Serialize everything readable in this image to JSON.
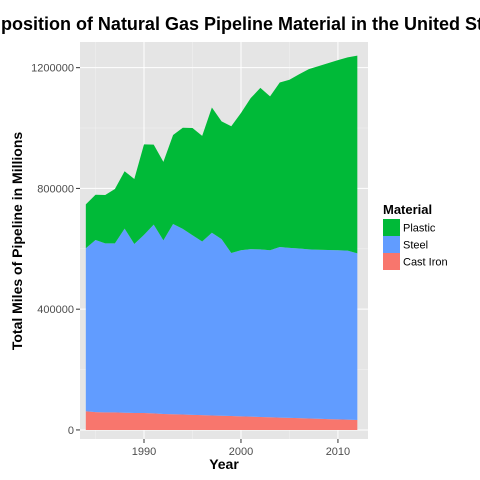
{
  "chart_data": {
    "type": "area",
    "stacked": true,
    "title": "Composition of Natural Gas Pipeline Material in the United States",
    "xlabel": "Year",
    "ylabel": "Total Miles of Pipeline in Millions",
    "xlim": [
      1983.4,
      2013.1
    ],
    "ylim": [
      -30000,
      1285000
    ],
    "x_ticks": [
      1990,
      2000,
      2010
    ],
    "y_ticks": [
      0,
      400000,
      800000,
      1200000
    ],
    "y_tick_labels": [
      "0",
      "400000",
      "800000",
      "1200000"
    ],
    "x_tick_labels": [
      "1990",
      "2000",
      "2010"
    ],
    "legend_title": "Material",
    "legend_position": "right",
    "x": [
      1984,
      1985,
      1986,
      1987,
      1988,
      1989,
      1990,
      1991,
      1992,
      1993,
      1994,
      1995,
      1996,
      1997,
      1998,
      1999,
      2000,
      2001,
      2002,
      2003,
      2004,
      2005,
      2006,
      2007,
      2008,
      2009,
      2010,
      2011,
      2012
    ],
    "series": [
      {
        "name": "Cast Iron",
        "color": "#F8766D",
        "values": [
          62000,
          59000,
          58000,
          58000,
          57000,
          56000,
          56000,
          55000,
          53000,
          52000,
          51000,
          50000,
          49000,
          48000,
          47000,
          46000,
          45000,
          44000,
          43000,
          42000,
          41000,
          40000,
          39000,
          38000,
          37000,
          36000,
          35000,
          34000,
          33000
        ]
      },
      {
        "name": "Steel",
        "color": "#619CFF",
        "values": [
          540000,
          570000,
          560000,
          560000,
          610000,
          560000,
          590000,
          625000,
          575000,
          630000,
          615000,
          595000,
          575000,
          605000,
          585000,
          540000,
          550000,
          555000,
          555000,
          553000,
          565000,
          563000,
          562000,
          560000,
          560000,
          560000,
          560000,
          560000,
          552000
        ]
      },
      {
        "name": "Plastic",
        "color": "#00BA38",
        "values": [
          145000,
          150000,
          160000,
          180000,
          190000,
          215000,
          300000,
          265000,
          260000,
          295000,
          335000,
          355000,
          350000,
          415000,
          390000,
          420000,
          455000,
          500000,
          535000,
          510000,
          545000,
          557000,
          577000,
          597000,
          608000,
          619000,
          630000,
          640000,
          655000
        ]
      }
    ]
  }
}
